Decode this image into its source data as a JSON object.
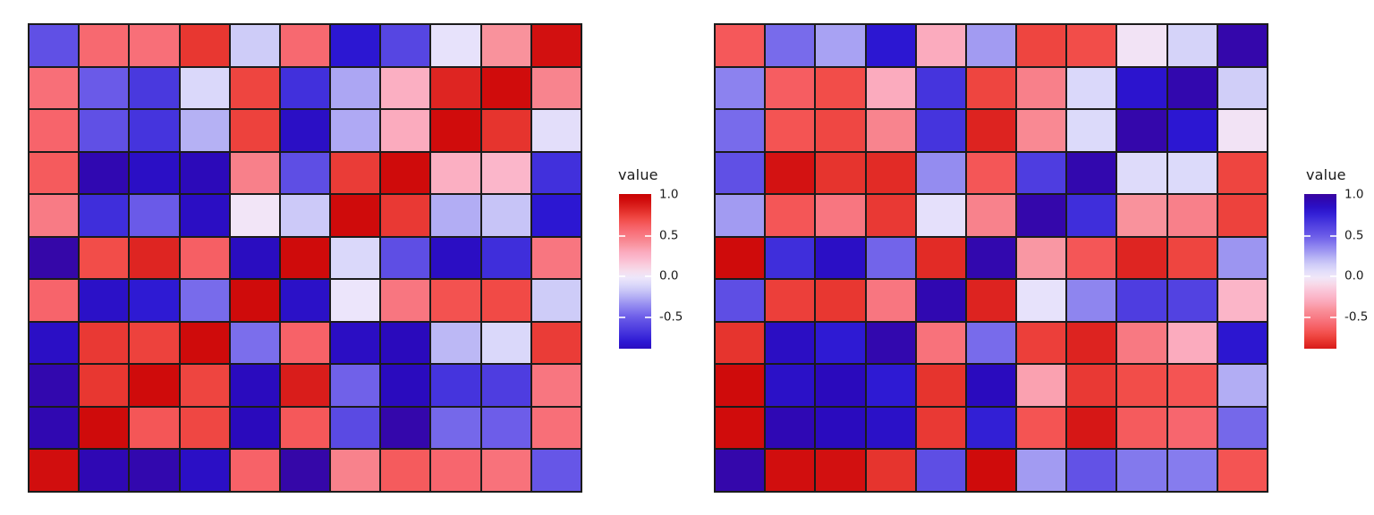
{
  "background": "#ffffff",
  "grid_line_color": "#1b1b1b",
  "colormap": {
    "description": "diverging red-white-violet-blue; left panel maps high values to red, right panel is reversed (high values blue)",
    "control_points": [
      [
        -1.0,
        "#3A05A0"
      ],
      [
        -0.9,
        "#2A0ABC"
      ],
      [
        -0.8,
        "#2C17D2"
      ],
      [
        -0.7,
        "#4130DC"
      ],
      [
        -0.6,
        "#5646E2"
      ],
      [
        -0.5,
        "#6A5AE8"
      ],
      [
        -0.4,
        "#867CEE"
      ],
      [
        -0.3,
        "#A29BF2"
      ],
      [
        -0.2,
        "#C2BFF6"
      ],
      [
        -0.1,
        "#DAD8FA"
      ],
      [
        0.0,
        "#F0E8FB"
      ],
      [
        0.1,
        "#F8D8E6"
      ],
      [
        0.2,
        "#FBBED2"
      ],
      [
        0.3,
        "#FBABBE"
      ],
      [
        0.4,
        "#F9929C"
      ],
      [
        0.5,
        "#F87B85"
      ],
      [
        0.6,
        "#F7646B"
      ],
      [
        0.7,
        "#F24D49"
      ],
      [
        0.8,
        "#E5312B"
      ],
      [
        0.9,
        "#D41414"
      ],
      [
        1.0,
        "#C90101"
      ]
    ]
  },
  "chart_data": [
    {
      "type": "heatmap",
      "title": "",
      "grid": {
        "rows": 11,
        "cols": 11
      },
      "scale_reversed": false,
      "legend": {
        "title": "value",
        "tick_labels": [
          "1.0",
          "0.5",
          "0.0",
          "-0.5"
        ],
        "tick_values": [
          1.0,
          0.5,
          0.0,
          -0.5
        ],
        "bar_top_value": 1.01,
        "bar_bottom_value": -0.88,
        "high_color": "#C90101",
        "low_color": "#3A05A0"
      },
      "values": [
        [
          -0.55,
          0.58,
          0.55,
          0.78,
          -0.15,
          0.58,
          -0.8,
          -0.6,
          -0.04,
          0.4,
          0.92
        ],
        [
          0.55,
          -0.5,
          -0.66,
          -0.1,
          0.73,
          -0.7,
          -0.27,
          0.28,
          0.84,
          0.94,
          0.46
        ],
        [
          0.6,
          -0.55,
          -0.68,
          -0.24,
          0.74,
          -0.86,
          -0.26,
          0.3,
          0.94,
          0.79,
          -0.06
        ],
        [
          0.64,
          -0.94,
          -0.86,
          -0.91,
          0.48,
          -0.56,
          0.76,
          0.95,
          0.28,
          0.24,
          -0.7
        ],
        [
          0.5,
          -0.71,
          -0.5,
          -0.87,
          0.02,
          -0.16,
          0.95,
          0.77,
          -0.25,
          -0.18,
          -0.8
        ],
        [
          -0.97,
          0.7,
          0.84,
          0.62,
          -0.88,
          0.95,
          -0.1,
          -0.56,
          -0.87,
          -0.71,
          0.52
        ],
        [
          0.6,
          -0.85,
          -0.79,
          -0.45,
          0.95,
          -0.85,
          -0.02,
          0.52,
          0.68,
          0.71,
          -0.15
        ],
        [
          -0.86,
          0.77,
          0.74,
          0.95,
          -0.44,
          0.61,
          -0.87,
          -0.9,
          -0.22,
          -0.1,
          0.76
        ],
        [
          -0.95,
          0.78,
          0.95,
          0.73,
          -0.89,
          0.87,
          -0.48,
          -0.89,
          -0.68,
          -0.64,
          0.52
        ],
        [
          -0.94,
          0.95,
          0.66,
          0.72,
          -0.9,
          0.65,
          -0.58,
          -0.96,
          -0.46,
          -0.49,
          0.55
        ],
        [
          0.93,
          -0.93,
          -0.95,
          -0.86,
          0.61,
          -0.97,
          0.47,
          0.64,
          0.59,
          0.54,
          -0.52
        ]
      ]
    },
    {
      "type": "heatmap",
      "title": "",
      "grid": {
        "rows": 11,
        "cols": 11
      },
      "scale_reversed": true,
      "legend": {
        "title": "value",
        "tick_labels": [
          "1.0",
          "0.5",
          "0.0",
          "-0.5"
        ],
        "tick_values": [
          1.0,
          0.5,
          0.0,
          -0.5
        ],
        "bar_top_value": 1.01,
        "bar_bottom_value": -0.88,
        "high_color": "#3A05A0",
        "low_color": "#C90101"
      },
      "values": [
        [
          -0.65,
          0.45,
          0.28,
          0.8,
          -0.3,
          0.3,
          -0.73,
          -0.7,
          -0.03,
          0.12,
          0.96
        ],
        [
          0.38,
          -0.63,
          -0.7,
          -0.3,
          0.68,
          -0.73,
          -0.48,
          0.1,
          0.82,
          0.95,
          0.14
        ],
        [
          0.45,
          -0.67,
          -0.72,
          -0.46,
          0.68,
          -0.85,
          -0.44,
          0.09,
          0.96,
          0.8,
          -0.03
        ],
        [
          0.55,
          -0.91,
          -0.79,
          -0.82,
          0.35,
          -0.66,
          0.64,
          0.95,
          0.08,
          0.09,
          -0.73
        ],
        [
          0.3,
          -0.66,
          -0.52,
          -0.77,
          0.05,
          -0.47,
          0.96,
          0.71,
          -0.4,
          -0.48,
          -0.74
        ],
        [
          -0.95,
          0.71,
          0.86,
          0.47,
          -0.82,
          0.95,
          -0.38,
          -0.66,
          -0.84,
          -0.73,
          0.32
        ],
        [
          0.56,
          -0.75,
          -0.78,
          -0.52,
          0.94,
          -0.85,
          0.04,
          0.37,
          0.64,
          0.62,
          -0.25
        ],
        [
          -0.79,
          0.87,
          0.79,
          0.95,
          -0.54,
          0.45,
          -0.75,
          -0.85,
          -0.51,
          -0.3,
          0.81
        ],
        [
          -0.95,
          0.85,
          0.9,
          0.79,
          -0.79,
          0.89,
          -0.34,
          -0.77,
          -0.7,
          -0.67,
          0.25
        ],
        [
          -0.94,
          0.93,
          0.89,
          0.85,
          -0.77,
          0.77,
          -0.67,
          -0.89,
          -0.64,
          -0.59,
          0.46
        ],
        [
          0.96,
          -0.93,
          -0.92,
          -0.79,
          0.56,
          -0.95,
          0.3,
          0.54,
          0.41,
          0.4,
          -0.67
        ]
      ]
    }
  ]
}
